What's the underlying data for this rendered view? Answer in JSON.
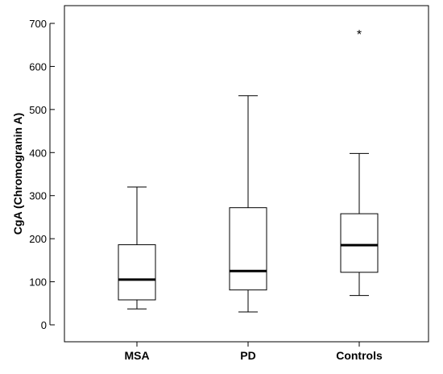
{
  "chart_data": {
    "type": "boxplot",
    "title": "",
    "xlabel": "",
    "ylabel": "CgA (Chromogranin A)",
    "ylim": [
      -30,
      740
    ],
    "yticks": [
      0,
      100,
      200,
      300,
      400,
      500,
      600,
      700
    ],
    "grid": false,
    "categories": [
      "MSA",
      "PD",
      "Controls"
    ],
    "boxes": [
      {
        "category": "MSA",
        "min": 37,
        "q1": 58,
        "median": 105,
        "q3": 186,
        "max": 320,
        "outliers": []
      },
      {
        "category": "PD",
        "min": 30,
        "q1": 81,
        "median": 125,
        "q3": 272,
        "max": 532,
        "outliers": []
      },
      {
        "category": "Controls",
        "min": 68,
        "q1": 122,
        "median": 185,
        "q3": 258,
        "max": 398,
        "outliers": [
          685
        ]
      }
    ],
    "outlier_marker": "*"
  }
}
